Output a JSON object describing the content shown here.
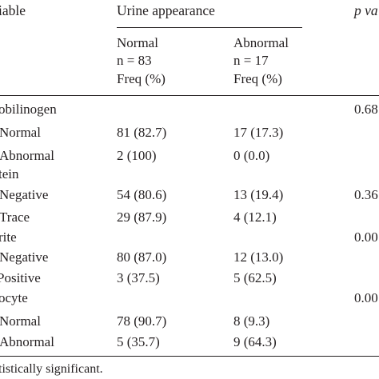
{
  "header": {
    "variable_label": "iable",
    "group_label": "Urine appearance",
    "p_label": "p va",
    "normal": {
      "name": "Normal",
      "n": "n = 83",
      "unit": "Freq (%)"
    },
    "abnormal": {
      "name": "Abnormal",
      "n": "n = 17",
      "unit": "Freq (%)"
    }
  },
  "rows": [
    {
      "label": "obilinogen",
      "normal": "",
      "abnormal": "",
      "p": "0.68"
    },
    {
      "label": "Normal",
      "normal": "81 (82.7)",
      "abnormal": "17 (17.3)",
      "p": ""
    },
    {
      "label": "Abnormal",
      "normal": "2 (100)",
      "abnormal": "0 (0.0)",
      "p": ""
    },
    {
      "label": "tein",
      "normal": "",
      "abnormal": "",
      "p": ""
    },
    {
      "label": "Negative",
      "normal": "54 (80.6)",
      "abnormal": "13 (19.4)",
      "p": "0.36"
    },
    {
      "label": "Trace",
      "normal": "29 (87.9)",
      "abnormal": "4 (12.1)",
      "p": ""
    },
    {
      "label": "rite",
      "normal": "",
      "abnormal": "",
      "p": "0.00"
    },
    {
      "label": "Negative",
      "normal": "80 (87.0)",
      "abnormal": "12 (13.0)",
      "p": ""
    },
    {
      "label": "Positive",
      "normal": "3 (37.5)",
      "abnormal": "5 (62.5)",
      "p": ""
    },
    {
      "label": "ocyte",
      "normal": "",
      "abnormal": "",
      "p": "0.00"
    },
    {
      "label": "Normal",
      "normal": "78 (90.7)",
      "abnormal": "8 (9.3)",
      "p": ""
    },
    {
      "label": "Abnormal",
      "normal": "5 (35.7)",
      "abnormal": "9 (64.3)",
      "p": ""
    }
  ],
  "footnote": "tistically significant."
}
